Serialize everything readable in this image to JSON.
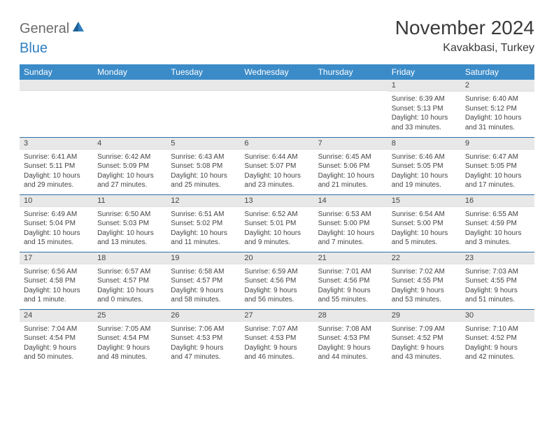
{
  "logo": {
    "part1": "General",
    "part2": "Blue"
  },
  "title": "November 2024",
  "location": "Kavakbasi, Turkey",
  "weekday_headers": [
    "Sunday",
    "Monday",
    "Tuesday",
    "Wednesday",
    "Thursday",
    "Friday",
    "Saturday"
  ],
  "colors": {
    "header_bg": "#3b8bc8",
    "row_border": "#2f6fa5",
    "daynum_bg": "#e8e8e8",
    "text": "#444444"
  },
  "weeks": [
    [
      {
        "n": "",
        "sunrise": "",
        "sunset": "",
        "daylight": ""
      },
      {
        "n": "",
        "sunrise": "",
        "sunset": "",
        "daylight": ""
      },
      {
        "n": "",
        "sunrise": "",
        "sunset": "",
        "daylight": ""
      },
      {
        "n": "",
        "sunrise": "",
        "sunset": "",
        "daylight": ""
      },
      {
        "n": "",
        "sunrise": "",
        "sunset": "",
        "daylight": ""
      },
      {
        "n": "1",
        "sunrise": "Sunrise: 6:39 AM",
        "sunset": "Sunset: 5:13 PM",
        "daylight": "Daylight: 10 hours and 33 minutes."
      },
      {
        "n": "2",
        "sunrise": "Sunrise: 6:40 AM",
        "sunset": "Sunset: 5:12 PM",
        "daylight": "Daylight: 10 hours and 31 minutes."
      }
    ],
    [
      {
        "n": "3",
        "sunrise": "Sunrise: 6:41 AM",
        "sunset": "Sunset: 5:11 PM",
        "daylight": "Daylight: 10 hours and 29 minutes."
      },
      {
        "n": "4",
        "sunrise": "Sunrise: 6:42 AM",
        "sunset": "Sunset: 5:09 PM",
        "daylight": "Daylight: 10 hours and 27 minutes."
      },
      {
        "n": "5",
        "sunrise": "Sunrise: 6:43 AM",
        "sunset": "Sunset: 5:08 PM",
        "daylight": "Daylight: 10 hours and 25 minutes."
      },
      {
        "n": "6",
        "sunrise": "Sunrise: 6:44 AM",
        "sunset": "Sunset: 5:07 PM",
        "daylight": "Daylight: 10 hours and 23 minutes."
      },
      {
        "n": "7",
        "sunrise": "Sunrise: 6:45 AM",
        "sunset": "Sunset: 5:06 PM",
        "daylight": "Daylight: 10 hours and 21 minutes."
      },
      {
        "n": "8",
        "sunrise": "Sunrise: 6:46 AM",
        "sunset": "Sunset: 5:05 PM",
        "daylight": "Daylight: 10 hours and 19 minutes."
      },
      {
        "n": "9",
        "sunrise": "Sunrise: 6:47 AM",
        "sunset": "Sunset: 5:05 PM",
        "daylight": "Daylight: 10 hours and 17 minutes."
      }
    ],
    [
      {
        "n": "10",
        "sunrise": "Sunrise: 6:49 AM",
        "sunset": "Sunset: 5:04 PM",
        "daylight": "Daylight: 10 hours and 15 minutes."
      },
      {
        "n": "11",
        "sunrise": "Sunrise: 6:50 AM",
        "sunset": "Sunset: 5:03 PM",
        "daylight": "Daylight: 10 hours and 13 minutes."
      },
      {
        "n": "12",
        "sunrise": "Sunrise: 6:51 AM",
        "sunset": "Sunset: 5:02 PM",
        "daylight": "Daylight: 10 hours and 11 minutes."
      },
      {
        "n": "13",
        "sunrise": "Sunrise: 6:52 AM",
        "sunset": "Sunset: 5:01 PM",
        "daylight": "Daylight: 10 hours and 9 minutes."
      },
      {
        "n": "14",
        "sunrise": "Sunrise: 6:53 AM",
        "sunset": "Sunset: 5:00 PM",
        "daylight": "Daylight: 10 hours and 7 minutes."
      },
      {
        "n": "15",
        "sunrise": "Sunrise: 6:54 AM",
        "sunset": "Sunset: 5:00 PM",
        "daylight": "Daylight: 10 hours and 5 minutes."
      },
      {
        "n": "16",
        "sunrise": "Sunrise: 6:55 AM",
        "sunset": "Sunset: 4:59 PM",
        "daylight": "Daylight: 10 hours and 3 minutes."
      }
    ],
    [
      {
        "n": "17",
        "sunrise": "Sunrise: 6:56 AM",
        "sunset": "Sunset: 4:58 PM",
        "daylight": "Daylight: 10 hours and 1 minute."
      },
      {
        "n": "18",
        "sunrise": "Sunrise: 6:57 AM",
        "sunset": "Sunset: 4:57 PM",
        "daylight": "Daylight: 10 hours and 0 minutes."
      },
      {
        "n": "19",
        "sunrise": "Sunrise: 6:58 AM",
        "sunset": "Sunset: 4:57 PM",
        "daylight": "Daylight: 9 hours and 58 minutes."
      },
      {
        "n": "20",
        "sunrise": "Sunrise: 6:59 AM",
        "sunset": "Sunset: 4:56 PM",
        "daylight": "Daylight: 9 hours and 56 minutes."
      },
      {
        "n": "21",
        "sunrise": "Sunrise: 7:01 AM",
        "sunset": "Sunset: 4:56 PM",
        "daylight": "Daylight: 9 hours and 55 minutes."
      },
      {
        "n": "22",
        "sunrise": "Sunrise: 7:02 AM",
        "sunset": "Sunset: 4:55 PM",
        "daylight": "Daylight: 9 hours and 53 minutes."
      },
      {
        "n": "23",
        "sunrise": "Sunrise: 7:03 AM",
        "sunset": "Sunset: 4:55 PM",
        "daylight": "Daylight: 9 hours and 51 minutes."
      }
    ],
    [
      {
        "n": "24",
        "sunrise": "Sunrise: 7:04 AM",
        "sunset": "Sunset: 4:54 PM",
        "daylight": "Daylight: 9 hours and 50 minutes."
      },
      {
        "n": "25",
        "sunrise": "Sunrise: 7:05 AM",
        "sunset": "Sunset: 4:54 PM",
        "daylight": "Daylight: 9 hours and 48 minutes."
      },
      {
        "n": "26",
        "sunrise": "Sunrise: 7:06 AM",
        "sunset": "Sunset: 4:53 PM",
        "daylight": "Daylight: 9 hours and 47 minutes."
      },
      {
        "n": "27",
        "sunrise": "Sunrise: 7:07 AM",
        "sunset": "Sunset: 4:53 PM",
        "daylight": "Daylight: 9 hours and 46 minutes."
      },
      {
        "n": "28",
        "sunrise": "Sunrise: 7:08 AM",
        "sunset": "Sunset: 4:53 PM",
        "daylight": "Daylight: 9 hours and 44 minutes."
      },
      {
        "n": "29",
        "sunrise": "Sunrise: 7:09 AM",
        "sunset": "Sunset: 4:52 PM",
        "daylight": "Daylight: 9 hours and 43 minutes."
      },
      {
        "n": "30",
        "sunrise": "Sunrise: 7:10 AM",
        "sunset": "Sunset: 4:52 PM",
        "daylight": "Daylight: 9 hours and 42 minutes."
      }
    ]
  ]
}
